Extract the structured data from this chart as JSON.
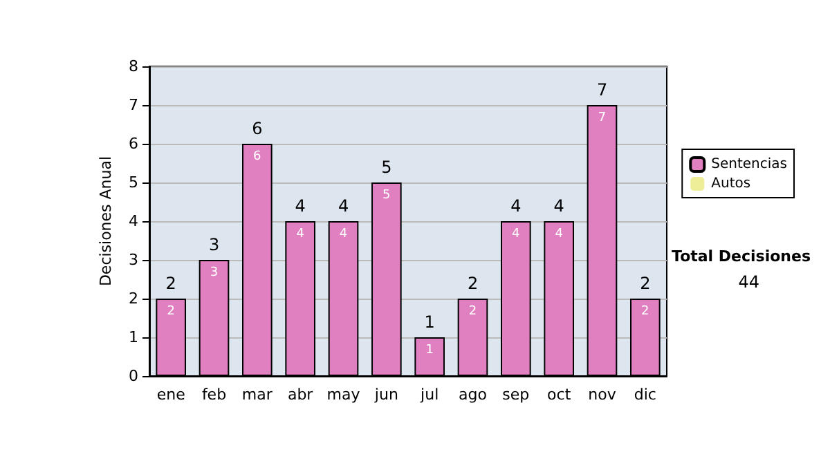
{
  "chart_data": {
    "type": "bar",
    "ylabel": "Decisiones Anual",
    "categories": [
      "ene",
      "feb",
      "mar",
      "abr",
      "may",
      "jun",
      "jul",
      "ago",
      "sep",
      "oct",
      "nov",
      "dic"
    ],
    "series": [
      {
        "name": "Sentencias",
        "color": "#e080c0",
        "values": [
          2,
          3,
          6,
          4,
          4,
          5,
          1,
          2,
          4,
          4,
          7,
          2
        ],
        "value_labels": [
          "2",
          "3",
          "6",
          "4",
          "4",
          "5",
          "1",
          "2",
          "4",
          "4",
          "7",
          "2"
        ]
      },
      {
        "name": "Autos",
        "color": "#eeee99",
        "values": [
          0,
          0,
          0,
          0,
          0,
          0,
          0,
          0,
          0,
          0,
          0,
          0
        ]
      }
    ],
    "stacked": true,
    "totals": [
      "2",
      "3",
      "6",
      "4",
      "4",
      "5",
      "1",
      "2",
      "4",
      "4",
      "7",
      "2"
    ],
    "ylim": [
      0,
      8
    ],
    "yticks": [
      0,
      1,
      2,
      3,
      4,
      5,
      6,
      7,
      8
    ],
    "grid": "y",
    "legend": "right",
    "annotations": [
      "Total Decisiones",
      "44"
    ]
  }
}
